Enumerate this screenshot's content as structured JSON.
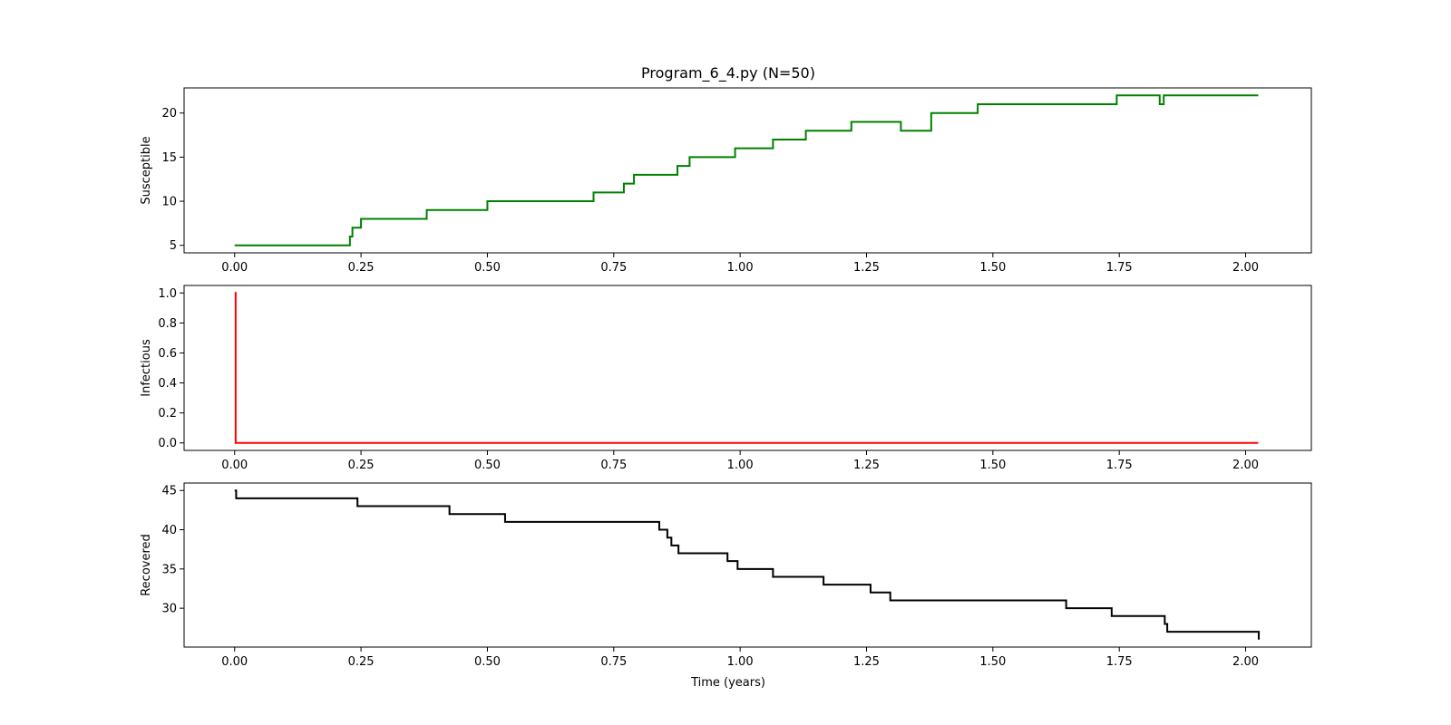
{
  "chart_data": {
    "type": "line",
    "title": "Program_6_4.py (N=50)",
    "xlabel": "Time (years)",
    "xlim": [
      -0.1,
      2.13
    ],
    "xticks": [
      0.0,
      0.25,
      0.5,
      0.75,
      1.0,
      1.25,
      1.5,
      1.75,
      2.0
    ],
    "xtick_labels": [
      "0.00",
      "0.25",
      "0.50",
      "0.75",
      "1.00",
      "1.25",
      "1.50",
      "1.75",
      "2.00"
    ],
    "grid": false,
    "panels": [
      {
        "ylabel": "Susceptible",
        "color": "#008000",
        "ylim": [
          4.15,
          22.85
        ],
        "yticks": [
          5,
          10,
          15,
          20
        ],
        "ytick_labels": [
          "5",
          "10",
          "15",
          "20"
        ],
        "x": [
          0.0,
          0.228,
          0.233,
          0.242,
          0.25,
          0.38,
          0.5,
          0.71,
          0.77,
          0.79,
          0.876,
          0.9,
          0.99,
          1.065,
          1.13,
          1.22,
          1.318,
          1.378,
          1.47,
          1.745,
          1.83,
          1.838,
          2.025
        ],
        "y": [
          5,
          6,
          7,
          7,
          8,
          9,
          10,
          11,
          12,
          13,
          14,
          15,
          16,
          17,
          18,
          19,
          18,
          20,
          21,
          22,
          21,
          22,
          22
        ]
      },
      {
        "ylabel": "Infectious",
        "color": "#ff0000",
        "ylim": [
          -0.05,
          1.05
        ],
        "yticks": [
          0.0,
          0.2,
          0.4,
          0.6,
          0.8,
          1.0
        ],
        "ytick_labels": [
          "0.0",
          "0.2",
          "0.4",
          "0.6",
          "0.8",
          "1.0"
        ],
        "x": [
          0.0,
          0.002,
          2.025
        ],
        "y": [
          1,
          0,
          0
        ]
      },
      {
        "ylabel": "Recovered",
        "color": "#000000",
        "ylim": [
          25.05,
          45.95
        ],
        "yticks": [
          30,
          35,
          40,
          45
        ],
        "ytick_labels": [
          "30",
          "35",
          "40",
          "45"
        ],
        "x": [
          0.0,
          0.003,
          0.243,
          0.425,
          0.535,
          0.84,
          0.856,
          0.864,
          0.878,
          0.975,
          0.995,
          1.065,
          1.165,
          1.258,
          1.297,
          1.645,
          1.735,
          1.84,
          1.845,
          2.025,
          2.026
        ],
        "y": [
          45,
          44,
          43,
          42,
          41,
          40,
          39,
          38,
          37,
          36,
          35,
          34,
          33,
          32,
          31,
          30,
          29,
          28,
          27,
          27,
          26
        ]
      }
    ]
  }
}
